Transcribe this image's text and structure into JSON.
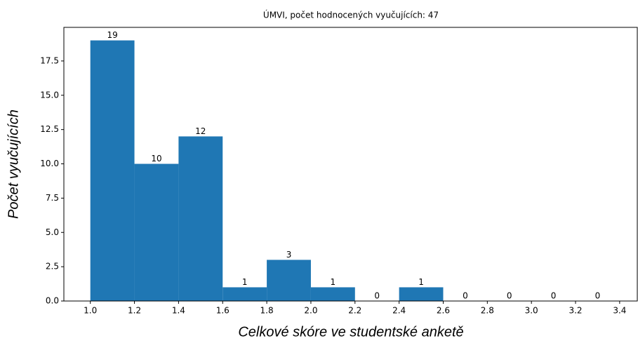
{
  "chart_data": {
    "type": "histogram",
    "title": "ÚMVI, počet hodnocených vyučujících: 47",
    "xlabel": "Celkové skóre ve studentské anketě",
    "ylabel": "Počet vyučujících",
    "bins": [
      1.0,
      1.2,
      1.4,
      1.6,
      1.8,
      2.0,
      2.2,
      2.4,
      2.6,
      2.8,
      3.0,
      3.2,
      3.4
    ],
    "values": [
      19,
      10,
      12,
      1,
      3,
      1,
      0,
      1,
      0,
      0,
      0,
      0
    ],
    "color": "#1f77b4",
    "xlim": [
      0.88,
      3.48
    ],
    "ylim": [
      0,
      19.95
    ],
    "xticks": [
      {
        "value": 1.0,
        "label": "1.0"
      },
      {
        "value": 1.2,
        "label": "1.2"
      },
      {
        "value": 1.4,
        "label": "1.4"
      },
      {
        "value": 1.6,
        "label": "1.6"
      },
      {
        "value": 1.8,
        "label": "1.8"
      },
      {
        "value": 2.0,
        "label": "2.0"
      },
      {
        "value": 2.2,
        "label": "2.2"
      },
      {
        "value": 2.4,
        "label": "2.4"
      },
      {
        "value": 2.6,
        "label": "2.6"
      },
      {
        "value": 2.8,
        "label": "2.8"
      },
      {
        "value": 3.0,
        "label": "3.0"
      },
      {
        "value": 3.2,
        "label": "3.2"
      },
      {
        "value": 3.4,
        "label": "3.4"
      }
    ],
    "yticks": [
      {
        "value": 0,
        "label": "0.0"
      },
      {
        "value": 2.5,
        "label": "2.5"
      },
      {
        "value": 5,
        "label": "5.0"
      },
      {
        "value": 7.5,
        "label": "7.5"
      },
      {
        "value": 10,
        "label": "10.0"
      },
      {
        "value": 12.5,
        "label": "12.5"
      },
      {
        "value": 15,
        "label": "15.0"
      },
      {
        "value": 17.5,
        "label": "17.5"
      }
    ],
    "grid": false
  }
}
